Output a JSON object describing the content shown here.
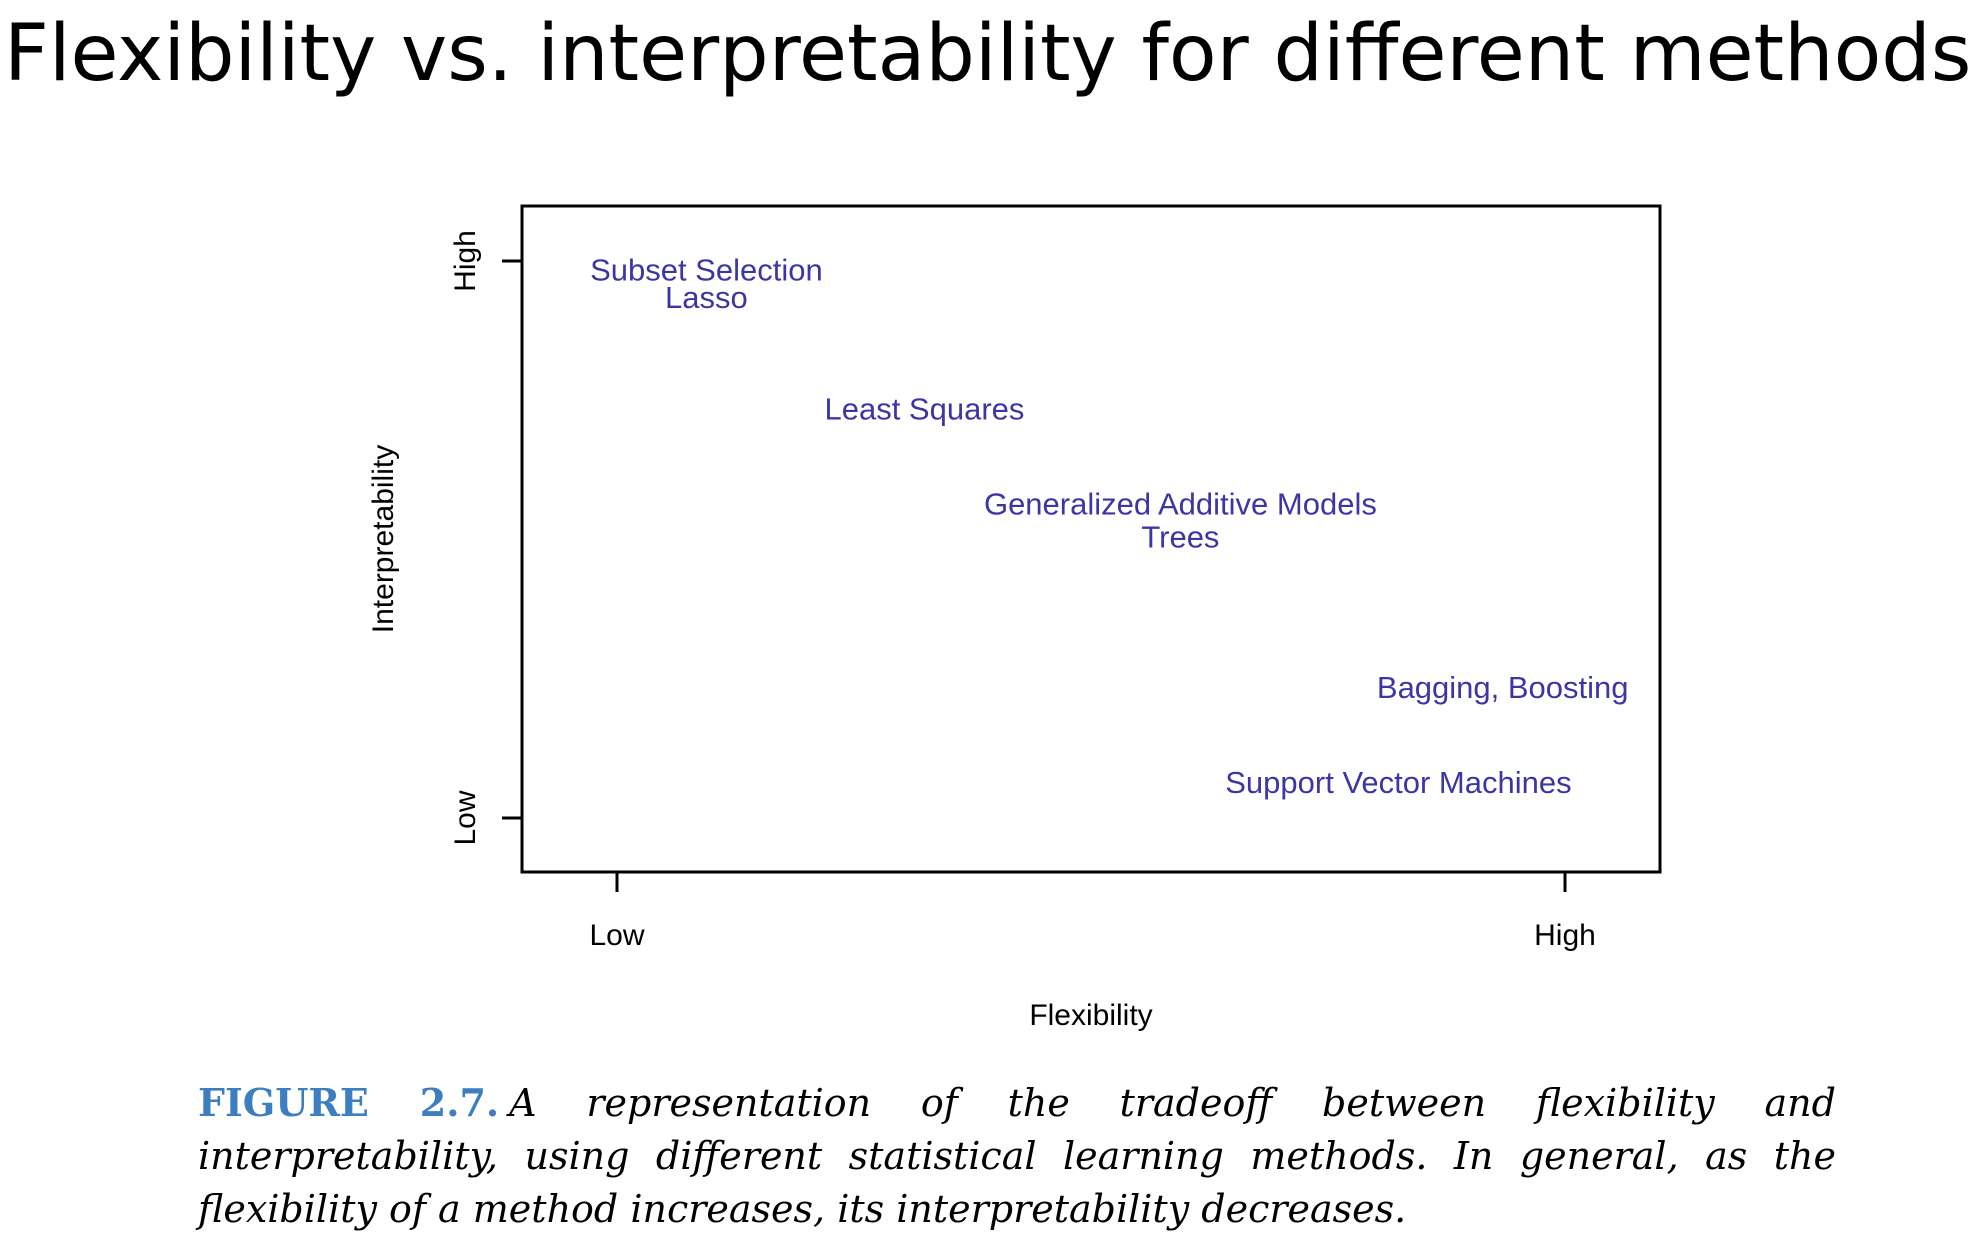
{
  "slide": {
    "title": "Flexibility vs. interpretability for different methods"
  },
  "chart_data": {
    "type": "scatter",
    "title": "",
    "xlabel": "Flexibility",
    "ylabel": "Interpretability",
    "x_tick_labels": [
      "Low",
      "High"
    ],
    "y_tick_labels": [
      "Low",
      "High"
    ],
    "xlim": [
      0,
      1
    ],
    "ylim": [
      0,
      1
    ],
    "grid": false,
    "label_color": "#3e35a5",
    "points": [
      {
        "label": "Subset Selection",
        "x": 0.05,
        "y": 0.98
      },
      {
        "label": "Lasso",
        "x": 0.05,
        "y": 0.93
      },
      {
        "label": "Least Squares",
        "x": 0.28,
        "y": 0.73
      },
      {
        "label": "Generalized Additive Models",
        "x": 0.55,
        "y": 0.56
      },
      {
        "label": "Trees",
        "x": 0.55,
        "y": 0.5
      },
      {
        "label": "Bagging, Boosting",
        "x": 0.89,
        "y": 0.23
      },
      {
        "label": "Support Vector Machines",
        "x": 0.78,
        "y": 0.06
      }
    ]
  },
  "caption": {
    "label": "FIGURE 2.7.",
    "text": "A representation of the tradeoff between flexibility and interpretability, using different statistical learning methods. In general, as the flexibility of a method increases, its interpretability decreases."
  }
}
